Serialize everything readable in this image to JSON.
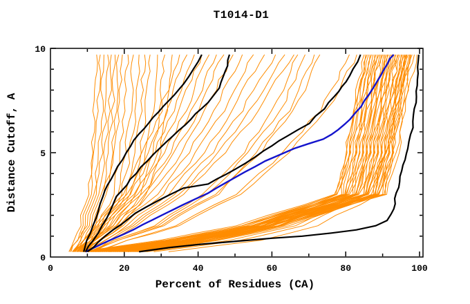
{
  "window": {
    "background": "#ffffff"
  },
  "chart_data": {
    "type": "line",
    "title": "T1014-D1",
    "xlabel": "Percent of Residues (CA)",
    "ylabel": "Distance Cutoff, A",
    "xlim": [
      0,
      101
    ],
    "ylim": [
      0,
      10
    ],
    "x_major_ticks": [
      0,
      20,
      40,
      60,
      80,
      100
    ],
    "x_minor_step": 10,
    "y_major_ticks": [
      0,
      5,
      10
    ],
    "y_minor_step": 1,
    "grid": false,
    "legend": "none",
    "colors": {
      "models": "#ff8c00",
      "highlight": "#000000",
      "reference": "#1414cc",
      "axis": "#000000",
      "background": "#ffffff"
    },
    "y_levels": [
      0.25,
      0.8,
      1.5,
      3,
      5,
      7,
      8.5,
      9.7
    ],
    "orange_model_curves_x": [
      [
        5.0,
        6.5,
        8.0,
        10.0,
        11.3,
        12.0,
        12.3,
        12.5
      ],
      [
        5.3,
        7.0,
        8.6,
        10.8,
        12.2,
        13.0,
        13.3,
        13.5
      ],
      [
        5.6,
        7.4,
        9.2,
        11.6,
        13.1,
        13.9,
        14.2,
        14.5
      ],
      [
        5.9,
        7.8,
        9.8,
        12.4,
        14.0,
        14.9,
        15.2,
        15.5
      ],
      [
        6.2,
        8.2,
        10.4,
        13.2,
        14.9,
        15.9,
        16.2,
        16.5
      ],
      [
        6.5,
        8.6,
        11.0,
        14.0,
        15.8,
        16.8,
        17.2,
        17.5
      ],
      [
        6.8,
        9.0,
        11.6,
        14.8,
        16.7,
        17.8,
        18.2,
        18.5
      ],
      [
        7.1,
        9.4,
        12.2,
        15.6,
        17.6,
        18.7,
        19.1,
        19.5
      ],
      [
        7.4,
        9.9,
        13.0,
        16.8,
        18.9,
        20.2,
        20.6,
        21.0
      ],
      [
        7.7,
        10.4,
        13.8,
        18.0,
        20.3,
        21.6,
        22.1,
        22.5
      ],
      [
        8.0,
        10.9,
        14.6,
        19.2,
        21.6,
        23.0,
        23.5,
        24.0
      ],
      [
        8.3,
        11.4,
        15.4,
        20.4,
        23.0,
        24.5,
        25.0,
        25.5
      ],
      [
        8.6,
        11.9,
        16.2,
        21.6,
        24.3,
        25.9,
        26.5,
        27.0
      ],
      [
        8.9,
        12.5,
        17.3,
        23.2,
        26.1,
        27.8,
        28.4,
        29.0
      ],
      [
        9.2,
        13.1,
        18.4,
        24.8,
        27.9,
        29.8,
        30.4,
        31.0
      ],
      [
        9.5,
        13.7,
        19.5,
        26.4,
        29.7,
        31.7,
        32.4,
        33.0
      ],
      [
        6.0,
        9.0,
        12.3,
        19.3,
        25.2,
        29.8,
        32.6,
        35.0
      ],
      [
        6.3,
        9.5,
        13.0,
        20.4,
        26.6,
        31.5,
        34.4,
        37.0
      ],
      [
        6.6,
        10.0,
        13.7,
        21.5,
        28.1,
        33.2,
        36.3,
        39.0
      ],
      [
        7.0,
        10.5,
        14.4,
        22.6,
        29.5,
        34.9,
        38.1,
        41.0
      ],
      [
        7.3,
        11.0,
        15.1,
        23.7,
        31.0,
        36.6,
        40.0,
        43.0
      ],
      [
        7.6,
        11.5,
        15.8,
        24.8,
        32.4,
        38.3,
        41.9,
        45.0
      ],
      [
        8.0,
        12.0,
        16.5,
        25.9,
        33.8,
        40.0,
        43.7,
        47.0
      ],
      [
        8.3,
        12.6,
        17.3,
        27.2,
        35.6,
        42.1,
        46.0,
        49.5
      ],
      [
        8.6,
        13.2,
        18.2,
        28.6,
        37.4,
        44.2,
        48.4,
        52.0
      ],
      [
        9.0,
        13.9,
        19.3,
        30.3,
        39.6,
        46.8,
        51.2,
        55.0
      ],
      [
        9.3,
        14.6,
        20.3,
        31.9,
        41.8,
        49.3,
        53.9,
        58.0
      ],
      [
        9.6,
        15.3,
        21.4,
        33.6,
        43.9,
        51.9,
        56.7,
        61.0
      ],
      [
        10.0,
        15.9,
        22.2,
        34.9,
        45.7,
        54.0,
        59.1,
        63.5
      ],
      [
        10.3,
        16.5,
        23.1,
        36.3,
        47.5,
        56.1,
        61.4,
        66.0
      ],
      [
        10.6,
        17.0,
        28.1,
        41.5,
        52.3,
        60.3,
        64.3,
        67.0
      ],
      [
        11.0,
        17.5,
        29.0,
        42.8,
        53.8,
        62.1,
        66.2,
        69.0
      ],
      [
        11.3,
        18.2,
        30.0,
        44.3,
        55.8,
        64.4,
        68.6,
        71.5
      ],
      [
        11.6,
        18.6,
        30.7,
        45.3,
        56.9,
        65.7,
        70.1,
        73.0
      ],
      [
        12.0,
        20.6,
        34.0,
        50.2,
        63.2,
        72.9,
        77.8,
        81.0
      ],
      [
        12.3,
        21.1,
        34.9,
        51.5,
        64.7,
        74.7,
        79.7,
        83.0
      ],
      [
        8.0,
        29.5,
        50.5,
        77.0,
        80.0,
        82.0,
        83.5,
        85.0
      ],
      [
        14.0,
        34.0,
        53.5,
        77.5,
        80.5,
        82.5,
        84.0,
        85.4
      ],
      [
        20.0,
        38.5,
        56.0,
        78.0,
        81.0,
        83.0,
        84.5,
        85.8
      ],
      [
        10.0,
        31.5,
        52.0,
        78.0,
        81.0,
        83.0,
        84.5,
        86.2
      ],
      [
        16.0,
        35.5,
        55.0,
        78.5,
        81.5,
        83.5,
        85.0,
        86.6
      ],
      [
        22.0,
        40.0,
        57.5,
        79.0,
        82.0,
        84.0,
        85.5,
        87.0
      ],
      [
        12.0,
        33.0,
        53.5,
        79.5,
        82.5,
        84.5,
        86.0,
        87.4
      ],
      [
        18.0,
        37.5,
        56.5,
        80.0,
        83.0,
        85.0,
        86.5,
        87.8
      ],
      [
        24.0,
        42.0,
        59.5,
        80.0,
        83.0,
        85.0,
        86.5,
        88.2
      ],
      [
        9.0,
        31.5,
        52.5,
        80.5,
        83.5,
        85.5,
        87.0,
        88.6
      ],
      [
        15.0,
        35.5,
        55.5,
        81.0,
        84.0,
        86.0,
        87.5,
        89.0
      ],
      [
        21.0,
        40.0,
        58.5,
        81.5,
        84.5,
        86.5,
        88.0,
        89.3
      ],
      [
        11.0,
        33.0,
        54.0,
        81.5,
        84.5,
        86.5,
        88.0,
        89.6
      ],
      [
        17.0,
        37.5,
        57.0,
        82.0,
        85.0,
        87.0,
        88.5,
        90.0
      ],
      [
        23.0,
        42.0,
        60.0,
        82.5,
        85.5,
        87.5,
        89.0,
        90.3
      ],
      [
        13.0,
        34.5,
        55.5,
        82.5,
        85.5,
        87.5,
        89.0,
        90.6
      ],
      [
        19.0,
        39.0,
        58.5,
        83.0,
        86.0,
        88.0,
        89.5,
        91.0
      ],
      [
        25.0,
        43.5,
        61.5,
        83.5,
        86.5,
        88.5,
        90.0,
        91.3
      ],
      [
        8.5,
        31.5,
        54.0,
        83.5,
        86.5,
        88.5,
        90.0,
        91.6
      ],
      [
        14.5,
        36.0,
        57.0,
        84.0,
        87.0,
        89.0,
        90.5,
        92.0
      ],
      [
        20.5,
        40.5,
        60.0,
        84.5,
        87.5,
        89.5,
        91.0,
        92.3
      ],
      [
        10.5,
        33.5,
        55.5,
        84.5,
        87.5,
        89.5,
        91.0,
        92.6
      ],
      [
        16.5,
        38.0,
        58.5,
        85.0,
        88.0,
        90.0,
        91.5,
        93.0
      ],
      [
        22.5,
        42.5,
        61.5,
        85.5,
        88.5,
        90.5,
        92.0,
        93.3
      ],
      [
        12.5,
        35.5,
        57.0,
        85.5,
        88.5,
        90.5,
        92.0,
        93.6
      ],
      [
        18.5,
        39.5,
        60.0,
        86.0,
        89.0,
        91.0,
        92.5,
        94.0
      ],
      [
        24.5,
        44.0,
        62.5,
        86.5,
        89.5,
        91.5,
        93.0,
        94.3
      ],
      [
        9.5,
        33.5,
        56.0,
        86.5,
        89.5,
        91.5,
        93.0,
        94.6
      ],
      [
        15.5,
        37.5,
        59.5,
        87.0,
        90.0,
        92.0,
        93.5,
        95.0
      ],
      [
        21.5,
        42.0,
        62.0,
        87.5,
        90.5,
        92.5,
        94.0,
        95.3
      ],
      [
        11.5,
        35.0,
        57.5,
        87.5,
        90.5,
        92.5,
        94.0,
        95.6
      ],
      [
        17.5,
        39.5,
        60.5,
        88.0,
        91.0,
        93.0,
        94.5,
        96.0
      ],
      [
        23.5,
        44.0,
        63.5,
        88.5,
        91.5,
        93.5,
        95.0,
        96.3
      ],
      [
        13.5,
        36.5,
        59.0,
        88.5,
        91.5,
        93.5,
        95.0,
        96.6
      ],
      [
        19.5,
        41.0,
        62.0,
        89.0,
        92.0,
        94.0,
        95.5,
        97.0
      ],
      [
        25.5,
        45.5,
        65.0,
        89.5,
        92.5,
        94.5,
        96.0,
        97.3
      ],
      [
        9.0,
        33.5,
        57.5,
        89.5,
        92.5,
        94.5,
        96.0,
        97.6
      ],
      [
        13.0,
        36.5,
        59.5,
        90.0,
        93.0,
        95.0,
        96.5,
        98.0
      ],
      [
        21.0,
        42.5,
        63.5,
        90.5,
        93.5,
        95.5,
        97.0,
        98.6
      ],
      [
        16.0,
        39.5,
        61.5,
        91.0,
        94.0,
        96.0,
        97.5,
        99.3
      ],
      [
        28.0,
        52.0,
        68.0,
        87.0,
        91.0,
        93.5,
        95.0,
        96.5
      ],
      [
        32.0,
        57.0,
        72.0,
        89.0,
        92.5,
        94.5,
        96.0,
        97.5
      ],
      [
        26.0,
        49.0,
        66.0,
        86.0,
        90.5,
        93.0,
        94.5,
        96.0
      ]
    ],
    "highlight_curves": [
      {
        "name": "black-model-1",
        "points": [
          [
            9,
            0.25
          ],
          [
            10,
            0.8
          ],
          [
            11.5,
            1.5
          ],
          [
            14,
            2.9
          ],
          [
            17,
            4.0
          ],
          [
            20.5,
            5.0
          ],
          [
            24,
            5.9
          ],
          [
            28,
            6.7
          ],
          [
            32,
            7.5
          ],
          [
            36,
            8.3
          ],
          [
            38.5,
            9.0
          ],
          [
            41,
            9.7
          ]
        ]
      },
      {
        "name": "black-model-2",
        "points": [
          [
            9.5,
            0.25
          ],
          [
            11.5,
            0.8
          ],
          [
            14,
            1.5
          ],
          [
            18,
            2.9
          ],
          [
            23,
            4.0
          ],
          [
            28,
            4.9
          ],
          [
            33,
            5.8
          ],
          [
            38,
            6.6
          ],
          [
            42.5,
            7.4
          ],
          [
            45.5,
            8.1
          ],
          [
            47.5,
            8.9
          ],
          [
            48.5,
            9.7
          ]
        ]
      },
      {
        "name": "black-model-3",
        "points": [
          [
            10,
            0.25
          ],
          [
            13,
            0.7
          ],
          [
            17,
            1.3
          ],
          [
            23,
            2.1
          ],
          [
            29,
            2.7
          ],
          [
            36,
            3.3
          ],
          [
            42.5,
            3.5
          ],
          [
            50,
            4.2
          ],
          [
            58,
            5.1
          ],
          [
            64,
            5.8
          ],
          [
            70,
            6.4
          ],
          [
            74,
            7.1
          ],
          [
            77,
            7.7
          ],
          [
            80,
            8.4
          ],
          [
            82,
            9.0
          ],
          [
            84,
            9.7
          ]
        ]
      },
      {
        "name": "black-model-4",
        "points": [
          [
            24,
            0.25
          ],
          [
            32,
            0.45
          ],
          [
            40,
            0.6
          ],
          [
            50,
            0.75
          ],
          [
            60,
            0.9
          ],
          [
            68,
            1.0
          ],
          [
            76,
            1.15
          ],
          [
            83,
            1.3
          ],
          [
            88,
            1.5
          ],
          [
            91,
            1.75
          ],
          [
            92.5,
            2.05
          ],
          [
            93.5,
            2.8
          ],
          [
            94.5,
            3.6
          ],
          [
            95.5,
            4.4
          ],
          [
            97,
            5.2
          ],
          [
            98,
            6.2
          ],
          [
            99,
            7.4
          ],
          [
            99.5,
            8.5
          ],
          [
            99.8,
            9.7
          ]
        ]
      }
    ],
    "reference_curve": {
      "name": "blue-reference",
      "points": [
        [
          9.5,
          0.25
        ],
        [
          14,
          0.65
        ],
        [
          20,
          1.1
        ],
        [
          25,
          1.55
        ],
        [
          30,
          2.0
        ],
        [
          36,
          2.5
        ],
        [
          42.5,
          3.05
        ],
        [
          50,
          3.8
        ],
        [
          58,
          4.6
        ],
        [
          66,
          5.2
        ],
        [
          74,
          5.65
        ],
        [
          78,
          6.1
        ],
        [
          81,
          6.6
        ],
        [
          84,
          7.2
        ],
        [
          86.5,
          7.8
        ],
        [
          88.5,
          8.4
        ],
        [
          90.5,
          9.0
        ],
        [
          92,
          9.5
        ],
        [
          93,
          9.7
        ]
      ]
    }
  }
}
